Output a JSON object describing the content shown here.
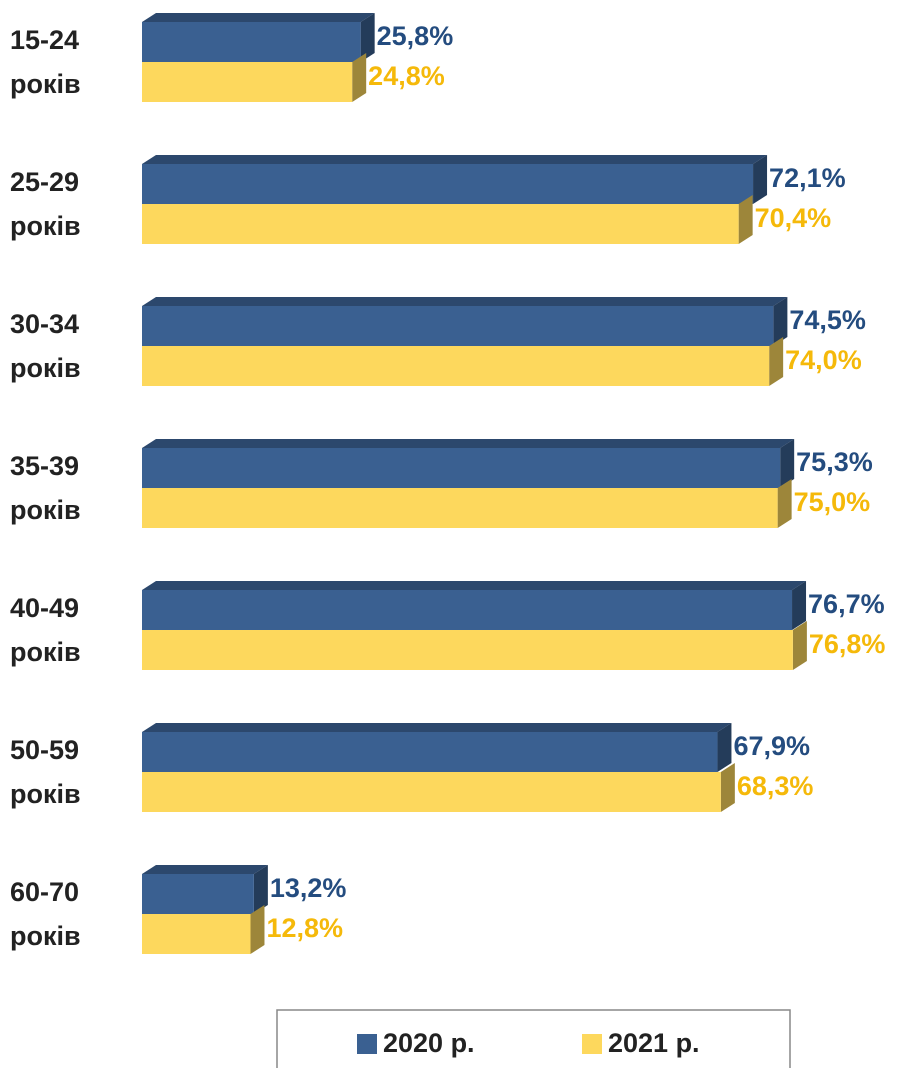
{
  "chart_data": {
    "type": "bar",
    "orientation": "horizontal",
    "categories": [
      "15-24 років",
      "25-29 років",
      "30-34 років",
      "35-39 років",
      "40-49 років",
      "50-59 років",
      "60-70 років"
    ],
    "series": [
      {
        "name": "2020 р.",
        "color": "#3a6091",
        "values": [
          25.8,
          72.1,
          74.5,
          75.3,
          76.7,
          67.9,
          13.2
        ],
        "value_labels": [
          "25,8%",
          "72,1%",
          "74,5%",
          "75,3%",
          "76,7%",
          "67,9%",
          "13,2%"
        ]
      },
      {
        "name": "2021 р.",
        "color": "#fdd85d",
        "values": [
          24.8,
          70.4,
          74.0,
          75.0,
          76.8,
          68.3,
          12.8
        ],
        "value_labels": [
          "24,8%",
          "70,4%",
          "74,0%",
          "75,0%",
          "76,8%",
          "68,3%",
          "12,8%"
        ]
      }
    ],
    "label_colors": [
      "#244c7f",
      "#f5b90a"
    ],
    "xlim": [
      0,
      80
    ],
    "legend": "bottom"
  }
}
